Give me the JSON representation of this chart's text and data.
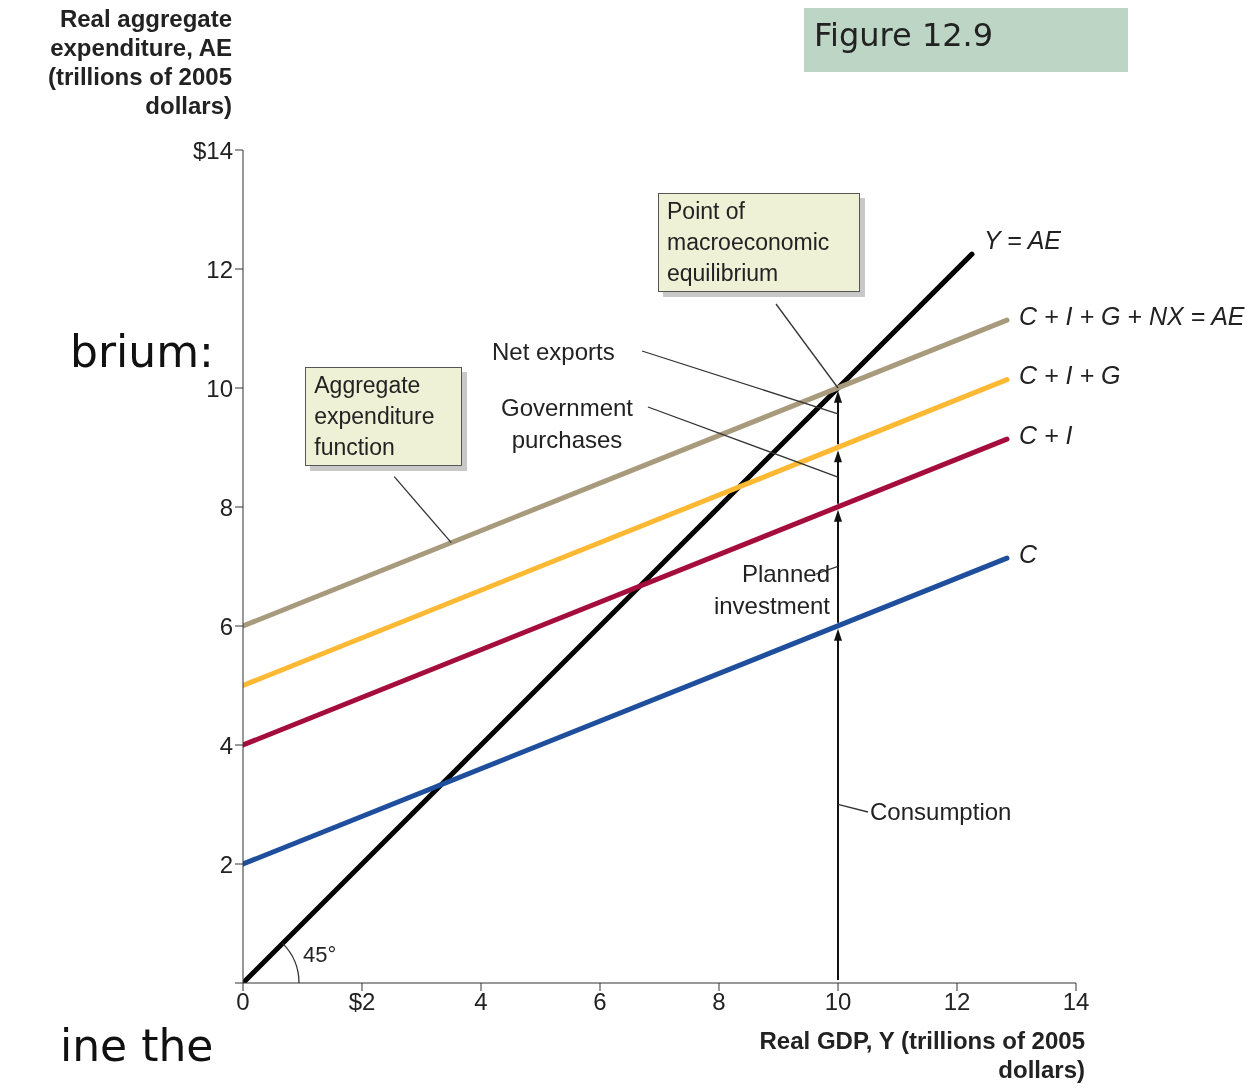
{
  "chart_data": {
    "type": "line",
    "xlabel": "Real GDP, Y (trillions of 2005 dollars)",
    "ylabel": "Real aggregate expenditure, AE (trillions of 2005 dollars)",
    "series": [
      {
        "name": "Y = AE",
        "color": "#000000",
        "x": [
          0,
          12.25
        ],
        "values": [
          0,
          12.25
        ]
      },
      {
        "name": "C + I + G + NX = AE",
        "color": "#a89a7c",
        "x": [
          0,
          12.84
        ],
        "values": [
          6,
          11.14
        ]
      },
      {
        "name": "C + I + G",
        "color": "#fdb933",
        "x": [
          0,
          12.84
        ],
        "values": [
          5,
          10.14
        ]
      },
      {
        "name": "C + I",
        "color": "#a50d3c",
        "x": [
          0,
          12.84
        ],
        "values": [
          4,
          9.14
        ]
      },
      {
        "name": "C",
        "color": "#1f4e9c",
        "x": [
          0,
          12.84
        ],
        "values": [
          2,
          7.14
        ]
      }
    ],
    "xlim": [
      0,
      14
    ],
    "ylim": [
      0,
      14
    ],
    "xticks": [
      {
        "value": 0,
        "label": "0"
      },
      {
        "value": 2,
        "label": "$2"
      },
      4,
      6,
      8,
      10,
      12,
      14
    ],
    "yticks": [
      {
        "value": 0,
        "label": null
      },
      2,
      4,
      6,
      8,
      10,
      12,
      {
        "value": 14,
        "label": "$14"
      }
    ],
    "grid": false,
    "legend": false,
    "line_style": "solid",
    "annotations": [
      "Figure 12.9",
      {
        "text": "Point of macroeconomic equilibrium",
        "x": 10,
        "y": 10
      },
      {
        "text": "Aggregate expenditure function",
        "x": 3.5,
        "y": 7.4
      },
      "Net exports",
      "Government purchases",
      "Planned investment",
      "Consumption",
      "45°",
      "brium:",
      "ine the"
    ]
  }
}
